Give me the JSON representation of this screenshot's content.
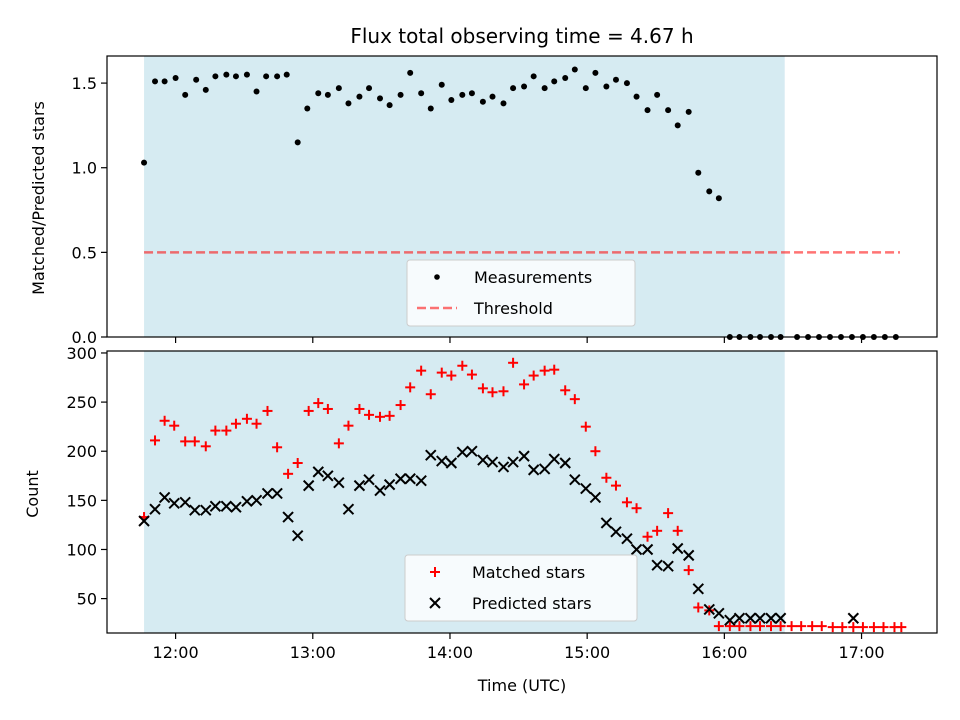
{
  "colors": {
    "observing_window": "#add8e6",
    "measurement": "#000000",
    "threshold": "#ff0000",
    "matched": "#ff0000",
    "predicted": "#000000",
    "axes": "#000000"
  },
  "chart_data": [
    {
      "type": "scatter",
      "title": "Flux total observing time = 4.67 h",
      "xlabel": "",
      "ylabel": "Matched/Predicted stars",
      "x_unit": "hours UTC",
      "xlim": [
        11.5,
        17.55
      ],
      "ylim": [
        0,
        1.66
      ],
      "yticks": [
        0.0,
        0.5,
        1.0,
        1.5
      ],
      "ytick_labels": [
        "0.0",
        "0.5",
        "1.0",
        "1.5"
      ],
      "shaded_span": [
        11.77,
        16.44
      ],
      "threshold": {
        "name": "Threshold",
        "value": 0.5,
        "x_range": [
          11.77,
          17.28
        ],
        "style": "dashed"
      },
      "legend": {
        "position": "lower-center",
        "entries": [
          "Measurements",
          "Threshold"
        ]
      },
      "series": [
        {
          "name": "Measurements",
          "marker": "dot",
          "x": [
            11.77,
            11.85,
            11.92,
            12.0,
            12.07,
            12.15,
            12.22,
            12.29,
            12.37,
            12.44,
            12.52,
            12.59,
            12.66,
            12.74,
            12.81,
            12.89,
            12.96,
            13.04,
            13.11,
            13.19,
            13.26,
            13.34,
            13.41,
            13.49,
            13.56,
            13.64,
            13.71,
            13.79,
            13.86,
            13.94,
            14.01,
            14.09,
            14.16,
            14.24,
            14.31,
            14.39,
            14.46,
            14.54,
            14.61,
            14.69,
            14.76,
            14.84,
            14.91,
            14.99,
            15.06,
            15.14,
            15.21,
            15.29,
            15.36,
            15.44,
            15.51,
            15.59,
            15.66,
            15.74,
            15.81,
            15.89,
            15.96,
            16.04,
            16.11,
            16.19,
            16.26,
            16.34,
            16.41,
            16.53,
            16.61,
            16.69,
            16.77,
            16.85,
            16.93,
            17.01,
            17.09,
            17.17,
            17.25
          ],
          "y": [
            1.03,
            1.51,
            1.51,
            1.53,
            1.43,
            1.52,
            1.46,
            1.54,
            1.55,
            1.54,
            1.55,
            1.45,
            1.54,
            1.54,
            1.55,
            1.15,
            1.35,
            1.44,
            1.43,
            1.47,
            1.38,
            1.42,
            1.47,
            1.41,
            1.37,
            1.43,
            1.56,
            1.44,
            1.35,
            1.49,
            1.4,
            1.43,
            1.44,
            1.39,
            1.42,
            1.38,
            1.47,
            1.48,
            1.54,
            1.47,
            1.51,
            1.53,
            1.58,
            1.47,
            1.56,
            1.48,
            1.52,
            1.5,
            1.42,
            1.34,
            1.43,
            1.34,
            1.25,
            1.33,
            0.97,
            0.86,
            0.82,
            0.0,
            0.0,
            0.0,
            0.0,
            0.0,
            0.0,
            0.0,
            0.0,
            0.0,
            0.0,
            0.0,
            0.0,
            0.0,
            0.0,
            0.0,
            0.0
          ]
        }
      ]
    },
    {
      "type": "scatter",
      "title": "",
      "xlabel": "Time (UTC)",
      "ylabel": "Count",
      "x_unit": "hours UTC",
      "xlim": [
        11.5,
        17.55
      ],
      "ylim": [
        15,
        302
      ],
      "yticks": [
        50,
        100,
        150,
        200,
        250,
        300
      ],
      "ytick_labels": [
        "50",
        "100",
        "150",
        "200",
        "250",
        "300"
      ],
      "xticks": [
        12,
        13,
        14,
        15,
        16,
        17
      ],
      "xtick_labels": [
        "12:00",
        "13:00",
        "14:00",
        "15:00",
        "16:00",
        "17:00"
      ],
      "shaded_span": [
        11.77,
        16.44
      ],
      "legend": {
        "position": "lower-center",
        "entries": [
          "Matched stars",
          "Predicted stars"
        ]
      },
      "series": [
        {
          "name": "Matched stars",
          "marker": "plus",
          "x": [
            11.77,
            11.85,
            11.92,
            11.99,
            12.07,
            12.14,
            12.22,
            12.29,
            12.37,
            12.44,
            12.52,
            12.59,
            12.67,
            12.74,
            12.82,
            12.89,
            12.97,
            13.04,
            13.11,
            13.19,
            13.26,
            13.34,
            13.41,
            13.49,
            13.56,
            13.64,
            13.71,
            13.79,
            13.86,
            13.94,
            14.01,
            14.09,
            14.16,
            14.24,
            14.31,
            14.39,
            14.46,
            14.54,
            14.61,
            14.69,
            14.76,
            14.84,
            14.91,
            14.99,
            15.06,
            15.14,
            15.21,
            15.29,
            15.36,
            15.44,
            15.51,
            15.59,
            15.66,
            15.74,
            15.81,
            15.89,
            15.96,
            16.04,
            16.11,
            16.19,
            16.26,
            16.34,
            16.41,
            16.49,
            16.56,
            16.64,
            16.71,
            16.79,
            16.86,
            16.94,
            17.01,
            17.09,
            17.16,
            17.24,
            17.29
          ],
          "y": [
            133,
            211,
            231,
            226,
            210,
            210,
            205,
            221,
            221,
            228,
            233,
            228,
            241,
            204,
            177,
            188,
            241,
            249,
            243,
            208,
            226,
            243,
            237,
            235,
            236,
            247,
            265,
            282,
            258,
            280,
            277,
            287,
            278,
            264,
            260,
            261,
            290,
            268,
            277,
            282,
            283,
            262,
            253,
            225,
            200,
            173,
            165,
            148,
            142,
            113,
            119,
            137,
            119,
            79,
            41,
            38,
            22,
            22,
            22,
            22,
            22,
            22,
            22,
            22,
            22,
            22,
            22,
            21,
            21,
            21,
            21,
            21,
            21,
            21,
            21
          ]
        },
        {
          "name": "Predicted stars",
          "marker": "x",
          "x": [
            11.77,
            11.85,
            11.92,
            11.99,
            12.07,
            12.14,
            12.22,
            12.29,
            12.37,
            12.44,
            12.52,
            12.59,
            12.67,
            12.74,
            12.82,
            12.89,
            12.97,
            13.04,
            13.11,
            13.19,
            13.26,
            13.34,
            13.41,
            13.49,
            13.56,
            13.64,
            13.71,
            13.79,
            13.86,
            13.94,
            14.01,
            14.09,
            14.16,
            14.24,
            14.31,
            14.39,
            14.46,
            14.54,
            14.61,
            14.69,
            14.76,
            14.84,
            14.91,
            14.99,
            15.06,
            15.14,
            15.21,
            15.29,
            15.36,
            15.44,
            15.51,
            15.59,
            15.66,
            15.74,
            15.81,
            15.89,
            15.96,
            16.04,
            16.11,
            16.19,
            16.26,
            16.34,
            16.41,
            16.94
          ],
          "y": [
            129,
            141,
            153,
            147,
            148,
            140,
            140,
            144,
            144,
            143,
            149,
            150,
            157,
            157,
            133,
            114,
            165,
            179,
            175,
            168,
            141,
            165,
            171,
            160,
            166,
            172,
            172,
            170,
            196,
            190,
            188,
            199,
            200,
            191,
            189,
            184,
            189,
            195,
            181,
            182,
            192,
            188,
            171,
            162,
            153,
            127,
            118,
            111,
            100,
            100,
            84,
            83,
            101,
            94,
            60,
            39,
            35,
            28,
            30,
            30,
            30,
            30,
            30,
            30
          ]
        }
      ]
    }
  ]
}
